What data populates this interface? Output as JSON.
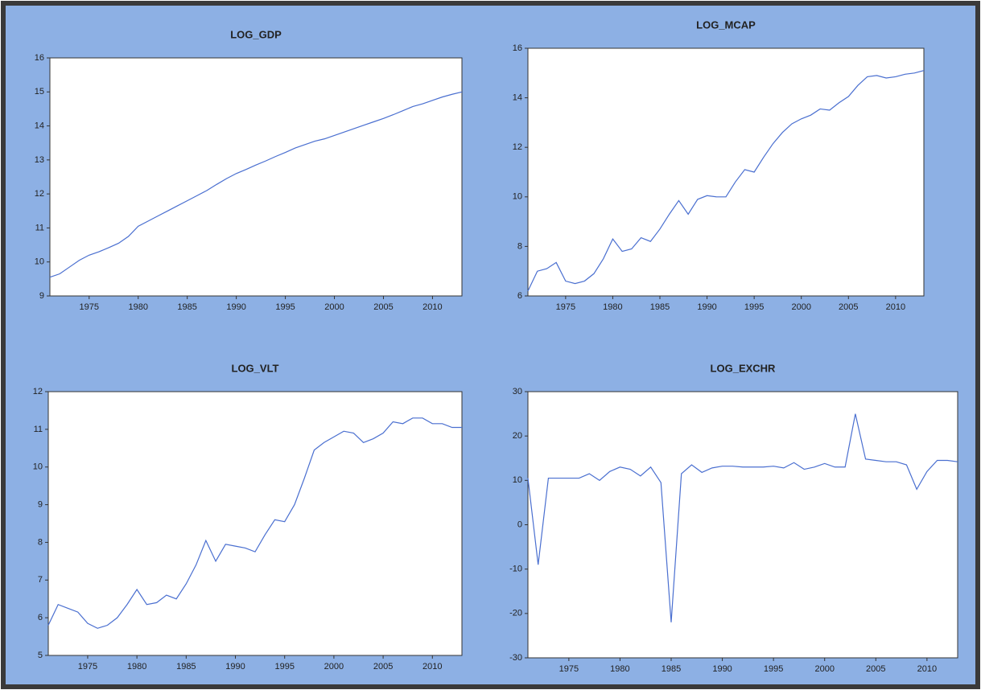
{
  "chart_data": [
    {
      "type": "line",
      "title": "LOG_GDP",
      "x": [
        1971,
        1972,
        1973,
        1974,
        1975,
        1976,
        1977,
        1978,
        1979,
        1980,
        1981,
        1982,
        1983,
        1984,
        1985,
        1986,
        1987,
        1988,
        1989,
        1990,
        1991,
        1992,
        1993,
        1994,
        1995,
        1996,
        1997,
        1998,
        1999,
        2000,
        2001,
        2002,
        2003,
        2004,
        2005,
        2006,
        2007,
        2008,
        2009,
        2010,
        2011,
        2012,
        2013
      ],
      "series": [
        {
          "color": "#4a6fd0",
          "values": [
            9.55,
            9.65,
            9.85,
            10.05,
            10.2,
            10.3,
            10.42,
            10.55,
            10.75,
            11.05,
            11.2,
            11.35,
            11.5,
            11.65,
            11.8,
            11.95,
            12.1,
            12.28,
            12.45,
            12.6,
            12.72,
            12.85,
            12.97,
            13.1,
            13.22,
            13.35,
            13.45,
            13.55,
            13.62,
            13.72,
            13.82,
            13.92,
            14.02,
            14.12,
            14.22,
            14.33,
            14.45,
            14.57,
            14.65,
            14.75,
            14.85,
            14.93,
            15.0
          ]
        }
      ],
      "xlim": [
        1971,
        2013
      ],
      "xticks": [
        1975,
        1980,
        1985,
        1990,
        1995,
        2000,
        2005,
        2010
      ],
      "ylim": [
        9,
        16
      ],
      "yticks": [
        9,
        10,
        11,
        12,
        13,
        14,
        15,
        16
      ]
    },
    {
      "type": "line",
      "title": "LOG_MCAP",
      "x": [
        1971,
        1972,
        1973,
        1974,
        1975,
        1976,
        1977,
        1978,
        1979,
        1980,
        1981,
        1982,
        1983,
        1984,
        1985,
        1986,
        1987,
        1988,
        1989,
        1990,
        1991,
        1992,
        1993,
        1994,
        1995,
        1996,
        1997,
        1998,
        1999,
        2000,
        2001,
        2002,
        2003,
        2004,
        2005,
        2006,
        2007,
        2008,
        2009,
        2010,
        2011,
        2012,
        2013
      ],
      "series": [
        {
          "color": "#4a6fd0",
          "values": [
            6.2,
            7.0,
            7.1,
            7.35,
            6.6,
            6.5,
            6.6,
            6.9,
            7.5,
            8.3,
            7.8,
            7.9,
            8.35,
            8.2,
            8.7,
            9.3,
            9.85,
            9.3,
            9.9,
            10.05,
            10.0,
            10.0,
            10.6,
            11.1,
            11.0,
            11.6,
            12.15,
            12.6,
            12.95,
            13.15,
            13.3,
            13.55,
            13.5,
            13.8,
            14.05,
            14.5,
            14.85,
            14.9,
            14.8,
            14.85,
            14.95,
            15.0,
            15.1
          ]
        }
      ],
      "xlim": [
        1971,
        2013
      ],
      "xticks": [
        1975,
        1980,
        1985,
        1990,
        1995,
        2000,
        2005,
        2010
      ],
      "ylim": [
        6,
        16
      ],
      "yticks": [
        6,
        8,
        10,
        12,
        14,
        16
      ]
    },
    {
      "type": "line",
      "title": "LOG_VLT",
      "x": [
        1971,
        1972,
        1973,
        1974,
        1975,
        1976,
        1977,
        1978,
        1979,
        1980,
        1981,
        1982,
        1983,
        1984,
        1985,
        1986,
        1987,
        1988,
        1989,
        1990,
        1991,
        1992,
        1993,
        1994,
        1995,
        1996,
        1997,
        1998,
        1999,
        2000,
        2001,
        2002,
        2003,
        2004,
        2005,
        2006,
        2007,
        2008,
        2009,
        2010,
        2011,
        2012,
        2013
      ],
      "series": [
        {
          "color": "#4a6fd0",
          "values": [
            5.8,
            6.35,
            6.25,
            6.15,
            5.85,
            5.72,
            5.8,
            6.0,
            6.35,
            6.75,
            6.35,
            6.4,
            6.6,
            6.5,
            6.9,
            7.4,
            8.05,
            7.5,
            7.95,
            7.9,
            7.85,
            7.75,
            8.2,
            8.6,
            8.55,
            9.0,
            9.7,
            10.45,
            10.65,
            10.8,
            10.95,
            10.9,
            10.65,
            10.75,
            10.9,
            11.2,
            11.15,
            11.3,
            11.3,
            11.15,
            11.15,
            11.05,
            11.05
          ]
        }
      ],
      "xlim": [
        1971,
        2013
      ],
      "xticks": [
        1975,
        1980,
        1985,
        1990,
        1995,
        2000,
        2005,
        2010
      ],
      "ylim": [
        5,
        12
      ],
      "yticks": [
        5,
        6,
        7,
        8,
        9,
        10,
        11,
        12
      ]
    },
    {
      "type": "line",
      "title": "LOG_EXCHR",
      "x": [
        1971,
        1972,
        1973,
        1974,
        1975,
        1976,
        1977,
        1978,
        1979,
        1980,
        1981,
        1982,
        1983,
        1984,
        1985,
        1986,
        1987,
        1988,
        1989,
        1990,
        1991,
        1992,
        1993,
        1994,
        1995,
        1996,
        1997,
        1998,
        1999,
        2000,
        2001,
        2002,
        2003,
        2004,
        2005,
        2006,
        2007,
        2008,
        2009,
        2010,
        2011,
        2012,
        2013
      ],
      "series": [
        {
          "color": "#4a6fd0",
          "values": [
            10.5,
            -9,
            10.5,
            10.5,
            10.5,
            10.5,
            11.5,
            10,
            12,
            13,
            12.5,
            11,
            13,
            9.5,
            -22,
            11.5,
            13.5,
            11.8,
            12.8,
            13.2,
            13.2,
            13,
            13,
            13,
            13.2,
            12.8,
            14,
            12.5,
            13,
            13.8,
            13,
            13,
            25,
            14.8,
            14.5,
            14.2,
            14.2,
            13.5,
            8,
            12,
            14.5,
            14.5,
            14.2
          ]
        }
      ],
      "xlim": [
        1971,
        2013
      ],
      "xticks": [
        1975,
        1980,
        1985,
        1990,
        1995,
        2000,
        2005,
        2010
      ],
      "ylim": [
        -30,
        30
      ],
      "yticks": [
        -30,
        -20,
        -10,
        0,
        10,
        20,
        30
      ]
    }
  ]
}
